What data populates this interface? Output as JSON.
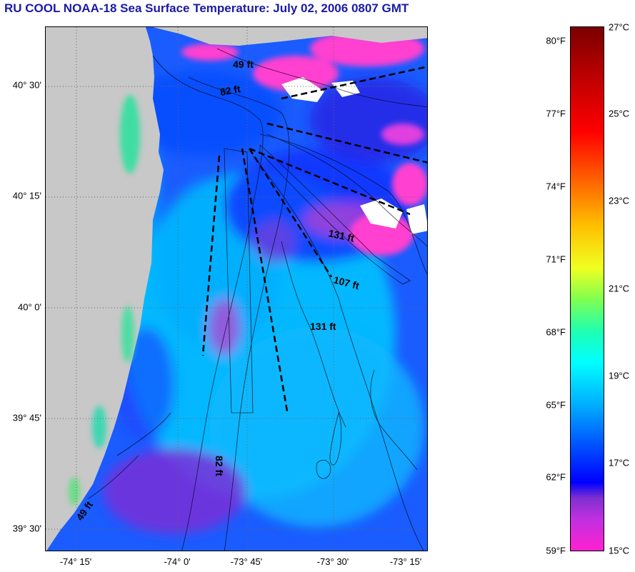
{
  "title": "RU COOL  NOAA-18  Sea Surface Temperature:  July 02, 2006 0807 GMT",
  "axes": {
    "latitude_labels": [
      "40° 30'",
      "40° 15'",
      "40° 0'",
      "39° 45'",
      "39° 30'"
    ],
    "longitude_labels": [
      "-74° 15'",
      "-74° 0'",
      "-73° 45'",
      "-73° 30'",
      "-73° 15'"
    ]
  },
  "depth_labels": [
    "49 ft",
    "82 ft",
    "131 ft",
    "107 ft",
    "131 ft",
    "82 ft",
    "49 ft"
  ],
  "colorbar": {
    "fahrenheit_labels": [
      "80°F",
      "77°F",
      "74°F",
      "71°F",
      "68°F",
      "65°F",
      "62°F",
      "59°F"
    ],
    "celsius_labels": [
      "27°C",
      "25°C",
      "23°C",
      "21°C",
      "19°C",
      "17°C",
      "15°C"
    ]
  },
  "colors": {
    "land": "#c8c8c8",
    "ocean_base": "#1a5cff",
    "warm_patch": "#ff44cc",
    "cool_patch": "#00d4ff",
    "title": "#1a1aa6"
  }
}
